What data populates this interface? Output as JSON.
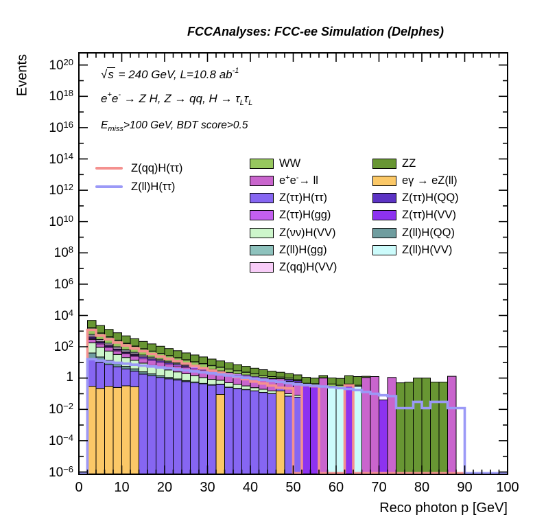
{
  "header": {
    "title": "FCCAnalyses: FCC-ee Simulation (Delphes)"
  },
  "annotations": {
    "line1": [
      {
        "t": "√"
      },
      {
        "t": "s",
        "overline": true
      },
      {
        "t": " = 240 GeV, L=10.8 ab"
      },
      {
        "t": "-1",
        "sup": true
      }
    ],
    "line2": [
      {
        "t": "e"
      },
      {
        "t": "+",
        "sup": true
      },
      {
        "t": "e"
      },
      {
        "t": "-",
        "sup": true
      },
      {
        "t": " → Z H, Z  → qq, H  → "
      },
      {
        "t": "τ"
      },
      {
        "t": "L",
        "sub": true
      },
      {
        "t": "τ"
      },
      {
        "t": "L",
        "sub": true
      }
    ],
    "line3": [
      {
        "t": "E"
      },
      {
        "t": "miss",
        "sub": true
      },
      {
        "t": ">100 GeV, BDT score>0.5"
      }
    ]
  },
  "axes": {
    "x": {
      "label": "Reco photon p [GeV]",
      "min": 0,
      "max": 100,
      "major_step": 10,
      "minor_step": 2,
      "tick_labels": [
        0,
        10,
        20,
        30,
        40,
        50,
        60,
        70,
        80,
        90,
        100
      ]
    },
    "y": {
      "label": "Events",
      "scale": "log",
      "min_exp": -6,
      "max_exp": 20.9,
      "labeled_exponents": [
        20,
        18,
        16,
        14,
        12,
        10,
        8,
        6,
        4,
        2,
        0,
        -2,
        -4,
        -6
      ]
    }
  },
  "signal_legend": [
    {
      "name": "Zqq_Htt",
      "label": "Z(qq)H(ττ)",
      "color": "#f4918f"
    },
    {
      "name": "Zll_Htt",
      "label": "Z(ll)H(ττ)",
      "color": "#9b99f7"
    }
  ],
  "chart_data": {
    "type": "stacked-histogram-log",
    "title": "FCCAnalyses: FCC-ee Simulation (Delphes)",
    "xlabel": "Reco photon p [GeV]",
    "ylabel": "Events",
    "x_start": 0,
    "bin_width": 2,
    "n_bins": 50,
    "xlim": [
      0,
      100
    ],
    "ylog_lim_exp": [
      -6,
      20.9
    ],
    "legend_position": "top-center-two-columns",
    "stack_series": [
      {
        "name": "egamma_eZll",
        "label_segments": [
          {
            "t": "eγ → eZ(ll)"
          }
        ],
        "color": "#fbc867",
        "values": [
          0,
          0.3,
          0.22,
          0.3,
          0.25,
          0.32,
          0.28,
          0,
          0,
          0,
          0,
          0,
          0,
          0,
          0,
          0,
          0.09,
          0,
          0,
          0,
          0,
          0,
          0,
          0.15,
          0,
          0,
          0,
          0,
          0,
          0,
          0,
          0,
          0,
          0,
          0,
          0,
          0,
          0,
          0,
          0,
          0,
          0,
          0,
          0,
          0,
          0,
          0,
          0,
          0,
          0
        ]
      },
      {
        "name": "Ztt_Htt",
        "label_segments": [
          {
            "t": "Z(ττ)H(ττ)"
          }
        ],
        "color": "#8666f2",
        "values": [
          0,
          15,
          10,
          7,
          5,
          3.5,
          2.5,
          1.8,
          1.4,
          1.1,
          0.9,
          0.75,
          0.6,
          0.5,
          0.42,
          0.35,
          0.3,
          0.25,
          0.21,
          0.18,
          0.15,
          0.12,
          0.1,
          0.08,
          0.07,
          0.06,
          0,
          0,
          0,
          0,
          0,
          0,
          0,
          0,
          0,
          0,
          0,
          0,
          0,
          0,
          0,
          0,
          0,
          0,
          0,
          0,
          0,
          0,
          0,
          0
        ]
      },
      {
        "name": "Zll_HQQ",
        "label_segments": [
          {
            "t": "Z(ll)H(QQ)"
          }
        ],
        "color": "#6f9d9f",
        "values": [
          0,
          25,
          12,
          6,
          3,
          1.8,
          1.1,
          0.7,
          0.45,
          0.3,
          0.2,
          0.13,
          0.09,
          0.06,
          0.04,
          0.03,
          0.02,
          0.013,
          0.009,
          0.006,
          0.004,
          0.003,
          0.002,
          0,
          0,
          0,
          0,
          0,
          0,
          0,
          0,
          0,
          0,
          0,
          0,
          0,
          0,
          0,
          0,
          0,
          0,
          0,
          0,
          0,
          0,
          0,
          0,
          0,
          0,
          0
        ]
      },
      {
        "name": "Znn_HVV",
        "label_segments": [
          {
            "t": "Z(νν)H(VV)"
          }
        ],
        "color": "#cdf6cb",
        "values": [
          0,
          140,
          70,
          40,
          24,
          15,
          10,
          6.5,
          4.5,
          3.2,
          2.2,
          1.6,
          1.2,
          0.85,
          0.6,
          0.45,
          0.32,
          0.24,
          0.17,
          0.13,
          0.09,
          0.07,
          0.05,
          0.04,
          0.03,
          0.02,
          0,
          0,
          0,
          0,
          0,
          0,
          0,
          0,
          0,
          0,
          0,
          0,
          0,
          0,
          0,
          0,
          0,
          0,
          0,
          0,
          0,
          0,
          0,
          0
        ]
      },
      {
        "name": "ee_ll",
        "label_segments": [
          {
            "t": "e"
          },
          {
            "t": "+",
            "sup": true
          },
          {
            "t": "e"
          },
          {
            "t": "-",
            "sup": true
          },
          {
            "t": "→ ll"
          }
        ],
        "color": "#c965cd",
        "values": [
          0,
          120,
          60,
          35,
          22,
          15,
          11,
          8,
          6.5,
          5.2,
          4.2,
          3.5,
          3,
          2.6,
          2.2,
          1.9,
          1.6,
          1.4,
          1.2,
          1.05,
          0.9,
          0.8,
          0.7,
          0.6,
          0.5,
          0.45,
          0,
          0,
          1,
          0,
          0,
          0,
          0,
          1.1,
          1.25,
          0,
          1.1,
          0,
          0,
          0,
          0,
          0,
          0,
          1.3,
          0,
          0,
          0,
          0,
          0,
          0
        ]
      },
      {
        "name": "Ztt_Hgg",
        "label_segments": [
          {
            "t": "Z(ττ)H(gg)"
          }
        ],
        "color": "#c45ff0",
        "values": [
          0,
          40,
          18,
          10,
          6,
          3.8,
          2.5,
          1.7,
          1.2,
          0.8,
          0.55,
          0.4,
          0.28,
          0.2,
          0.14,
          0.1,
          0.07,
          0.05,
          0.035,
          0.025,
          0.018,
          0.013,
          0.009,
          0.006,
          0,
          0,
          0,
          0,
          0,
          0,
          0,
          0,
          0,
          0,
          0,
          0,
          0,
          0,
          0,
          0,
          0,
          0,
          0,
          0,
          0,
          0,
          0,
          0,
          0,
          0
        ]
      },
      {
        "name": "Ztt_HQQ",
        "label_segments": [
          {
            "t": "Z(ττ)H(QQ)"
          }
        ],
        "color": "#5c33c4",
        "values": [
          0,
          60,
          28,
          15,
          9,
          5.5,
          3.6,
          2.4,
          1.7,
          1.2,
          0.85,
          0.6,
          0.42,
          0.3,
          0.22,
          0.16,
          0.11,
          0.08,
          0.055,
          0.04,
          0.028,
          0.02,
          0.014,
          0.01,
          0.2,
          0.15,
          0,
          0,
          0,
          0,
          0,
          0,
          0,
          0,
          0,
          0,
          0,
          0,
          0,
          0,
          0,
          0,
          0,
          0,
          0,
          0,
          0,
          0,
          0,
          0
        ]
      },
      {
        "name": "Ztt_HVV",
        "label_segments": [
          {
            "t": "Z(ττ)H(VV)"
          }
        ],
        "color": "#8d32f0",
        "values": [
          0,
          30,
          14,
          8,
          4.5,
          2.8,
          1.8,
          1.2,
          0.8,
          0.55,
          0.38,
          0.27,
          0.19,
          0.13,
          0.09,
          0.065,
          0.045,
          0.032,
          0.022,
          0.016,
          0.011,
          0.008,
          0.006,
          0,
          0,
          0,
          0.38,
          0.33,
          0,
          0,
          0,
          0.3,
          0,
          0,
          0,
          0.04,
          0,
          0,
          0,
          0,
          0,
          0,
          0,
          0,
          0,
          0,
          0,
          0,
          0,
          0
        ]
      },
      {
        "name": "Zqq_HVV",
        "label_segments": [
          {
            "t": "Z(qq)H(VV)"
          }
        ],
        "color": "#f8cdf8",
        "values": [
          0,
          120,
          55,
          30,
          18,
          11,
          7,
          4.8,
          3.3,
          2.3,
          1.6,
          1.15,
          0.8,
          0.58,
          0.42,
          0.3,
          0.21,
          0.15,
          0.11,
          0.08,
          0.055,
          0.04,
          0.028,
          0.02,
          0.015,
          0,
          0,
          0.04,
          0,
          0,
          0,
          0,
          0,
          0,
          0,
          0,
          0,
          0,
          0,
          0,
          0,
          0,
          0,
          0,
          0,
          0,
          0,
          0,
          0,
          0
        ]
      },
      {
        "name": "Zll_HVV",
        "label_segments": [
          {
            "t": "Z(ll)H(VV)"
          }
        ],
        "color": "#ccfbfb",
        "values": [
          0,
          60,
          28,
          16,
          10,
          6,
          4,
          2.7,
          1.9,
          1.35,
          0.95,
          0.7,
          0.5,
          0.36,
          0.26,
          0.19,
          0.135,
          0.1,
          0.07,
          0.05,
          0.036,
          0.026,
          0.019,
          0.014,
          0.01,
          0,
          0,
          0,
          0,
          0.3,
          0.25,
          0,
          0.3,
          0,
          0,
          0,
          0,
          0,
          0,
          0,
          0,
          0,
          0,
          0,
          0,
          0,
          0,
          0,
          0,
          0
        ]
      },
      {
        "name": "WW",
        "label_segments": [
          {
            "t": "WW"
          }
        ],
        "color": "#97c75e",
        "values": [
          0,
          900,
          420,
          240,
          150,
          95,
          62,
          42,
          29,
          20,
          14,
          10,
          7,
          5,
          3.6,
          2.6,
          1.9,
          1.4,
          1,
          0.75,
          0.55,
          0.4,
          0.3,
          0.22,
          0.16,
          0.12,
          0.09,
          0.07,
          0.06,
          0.12,
          0.1,
          0.12,
          0.05,
          0,
          0,
          0,
          0,
          0,
          0,
          0,
          0,
          0,
          0,
          0,
          0,
          0,
          0,
          0,
          0,
          0
        ]
      },
      {
        "name": "Zll_Hgg",
        "label_segments": [
          {
            "t": "Z(ll)H(gg)"
          }
        ],
        "color": "#8ec2bd",
        "values": [
          0,
          100,
          45,
          25,
          15,
          9,
          6,
          4,
          2.8,
          2,
          1.4,
          1,
          0.7,
          0.5,
          0.36,
          0.26,
          0.19,
          0.14,
          0.1,
          0.07,
          0.05,
          0.04,
          0.03,
          0.02,
          0.015,
          0.011,
          0,
          0,
          0,
          0,
          0,
          0,
          0,
          0,
          0,
          0,
          0,
          0,
          0,
          0,
          0,
          0,
          0,
          0,
          0,
          0,
          0,
          0,
          0,
          0
        ]
      },
      {
        "name": "ZZ",
        "label_segments": [
          {
            "t": "ZZ"
          }
        ],
        "color": "#689633",
        "values": [
          0,
          3200,
          1500,
          850,
          520,
          330,
          215,
          145,
          100,
          70,
          50,
          36,
          26,
          19,
          14,
          10,
          7.5,
          5.6,
          4.2,
          3.2,
          2.4,
          1.9,
          1.5,
          1.2,
          0.95,
          0.8,
          0.65,
          0.55,
          0.4,
          0.6,
          0.6,
          1,
          0.9,
          0.2,
          0,
          0,
          0,
          0.5,
          0.55,
          1,
          1,
          0.55,
          0.55,
          0,
          0,
          0,
          0,
          0,
          0,
          0
        ]
      }
    ],
    "line_series": [
      {
        "name": "Zqq_Htt",
        "label": "Z(qq)H(ττ)",
        "color": "#f4918f",
        "values": [
          0,
          1200,
          520,
          300,
          185,
          120,
          78,
          52,
          35,
          24,
          17,
          12,
          8.5,
          6,
          4.2,
          3,
          2.2,
          1.6,
          1.15,
          0.85,
          0.6,
          0.45,
          0.33,
          0.24,
          0.22,
          0,
          0.35,
          0.3,
          0,
          0,
          0,
          0.34,
          0,
          0,
          0,
          0,
          0,
          0,
          0,
          0,
          0,
          0,
          0,
          0,
          0,
          0,
          0,
          0,
          0,
          0
        ]
      },
      {
        "name": "Zll_Htt",
        "label": "Z(ll)H(ττ)",
        "color": "#9b99f7",
        "values": [
          0,
          16,
          13,
          11,
          9.5,
          8.3,
          7.2,
          6.3,
          5.5,
          4.8,
          4.2,
          3.6,
          3.1,
          2.7,
          2.3,
          2,
          1.7,
          1.45,
          1.25,
          1.05,
          0.9,
          0.78,
          0.66,
          0.57,
          0.48,
          0.4,
          0.36,
          0.32,
          0.29,
          0.26,
          0.23,
          0.2,
          0.17,
          0.13,
          0.1,
          0.08,
          0.07,
          0.012,
          0.012,
          0.03,
          0.012,
          0.03,
          0.03,
          0.012,
          0.012,
          0,
          0,
          0,
          0,
          0
        ]
      }
    ],
    "legend_columns": {
      "col1": [
        "WW",
        "ee_ll",
        "Ztt_Htt",
        "Ztt_Hgg",
        "Znn_HVV",
        "Zll_Hgg",
        "Zqq_HVV"
      ],
      "col2": [
        "ZZ",
        "egamma_eZll",
        "Ztt_HQQ",
        "Ztt_HVV",
        "Zll_HQQ",
        "Zll_HVV"
      ]
    }
  }
}
